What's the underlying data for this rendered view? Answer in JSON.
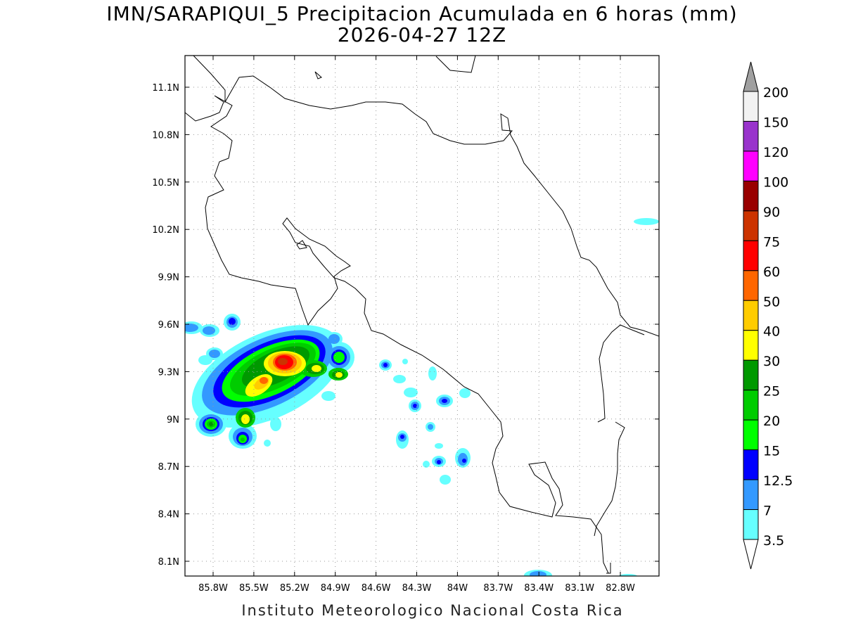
{
  "title": "IMN/SARAPIQUI_5 Precipitacion Acumulada en 6 horas (mm)",
  "subtitle": "2026-04-27 12Z",
  "footer": "Instituto Meteorologico Nacional Costa Rica",
  "map": {
    "lon_range": [
      -86.0,
      -83.0
    ],
    "lat_range": [
      8.0,
      11.2
    ],
    "lat_ticks": [
      "11.1N",
      "10.8N",
      "10.5N",
      "10.2N",
      "9.9N",
      "9.6N",
      "9.3N",
      "9N",
      "8.7N",
      "8.4N",
      "8.1N"
    ],
    "lon_ticks": [
      "85.8W",
      "85.5W",
      "85.2W",
      "84.9W",
      "84.6W",
      "84.3W",
      "84W",
      "83.7W",
      "83.4W",
      "83.1W",
      "82.8W"
    ],
    "grid": "dotted"
  },
  "colorbar": {
    "labels": [
      "200",
      "150",
      "120",
      "100",
      "90",
      "75",
      "60",
      "50",
      "40",
      "30",
      "25",
      "20",
      "15",
      "12.5",
      "7",
      "3.5"
    ],
    "colors": [
      "#f2f2f2",
      "#9933cc",
      "#ff00ff",
      "#990000",
      "#cc3300",
      "#ff0000",
      "#ff6600",
      "#ffcc00",
      "#ffff00",
      "#009900",
      "#00cc00",
      "#00ff00",
      "#0000ff",
      "#3399ff",
      "#66ffff"
    ],
    "over_color": "#a0a0a0",
    "under_color": "#ffffff"
  }
}
